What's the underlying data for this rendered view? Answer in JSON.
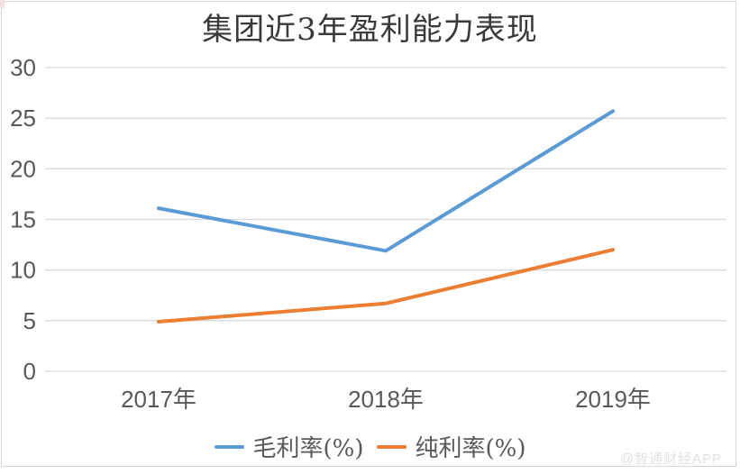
{
  "chart_data": {
    "type": "line",
    "title": "集团近3年盈利能力表现",
    "categories": [
      "2017年",
      "2018年",
      "2019年"
    ],
    "series": [
      {
        "name": "毛利率(%)",
        "color": "#5B9BD5",
        "values": [
          16.1,
          11.9,
          25.7
        ]
      },
      {
        "name": "纯利率(%)",
        "color": "#ED7D31",
        "values": [
          4.9,
          6.7,
          12.0
        ]
      }
    ],
    "ylim": [
      0,
      30
    ],
    "ytick_step": 5,
    "xlabel": "",
    "ylabel": "",
    "grid": "horizontal",
    "gridline_color": "#D9D9D9",
    "axis_text_color": "#595959",
    "legend_position": "bottom-center"
  },
  "watermark": {
    "text": "@智通财经APP"
  }
}
